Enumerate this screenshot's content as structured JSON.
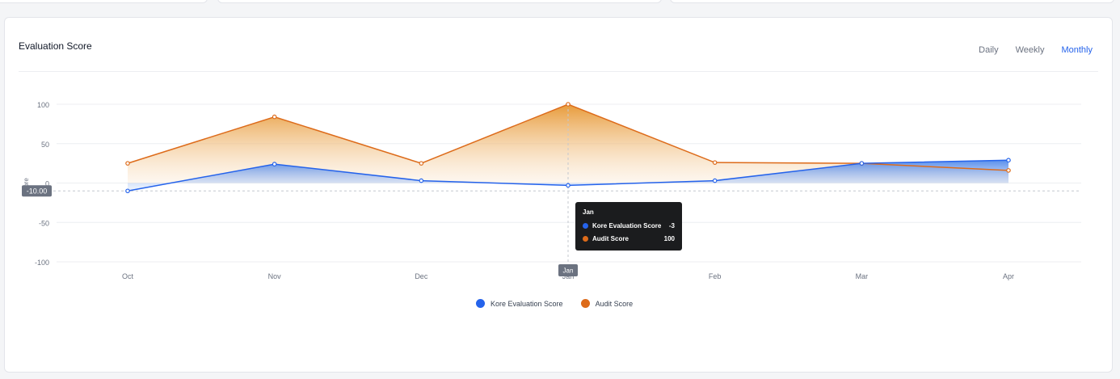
{
  "header": {
    "title": "Evaluation Score",
    "tabs": [
      {
        "label": "Daily",
        "active": false
      },
      {
        "label": "Weekly",
        "active": false
      },
      {
        "label": "Monthly",
        "active": true
      }
    ]
  },
  "colors": {
    "kore": "#2563eb",
    "audit": "#dd6b1a",
    "active_tab": "#2563eb"
  },
  "chart_data": {
    "type": "area",
    "categories": [
      "Oct",
      "Nov",
      "Dec",
      "Jan",
      "Feb",
      "Mar",
      "Apr"
    ],
    "series": [
      {
        "name": "Kore Evaluation Score",
        "values": [
          -10,
          24,
          3,
          -3,
          3,
          25,
          29
        ]
      },
      {
        "name": "Audit Score",
        "values": [
          25,
          84,
          25,
          100,
          26,
          25,
          16
        ]
      }
    ],
    "ylim": [
      -100,
      100
    ],
    "yticks": [
      100,
      50,
      0,
      -50,
      -100
    ],
    "ylabel": "ore",
    "crosshair": {
      "x_label": "Jan",
      "y_label": "-10.00"
    },
    "tooltip": {
      "title": "Jan",
      "rows": [
        {
          "label": "Kore Evaluation Score",
          "value": "-3"
        },
        {
          "label": "Audit Score",
          "value": "100"
        }
      ]
    },
    "legend": {
      "position": "bottom-center"
    },
    "grid": true
  }
}
